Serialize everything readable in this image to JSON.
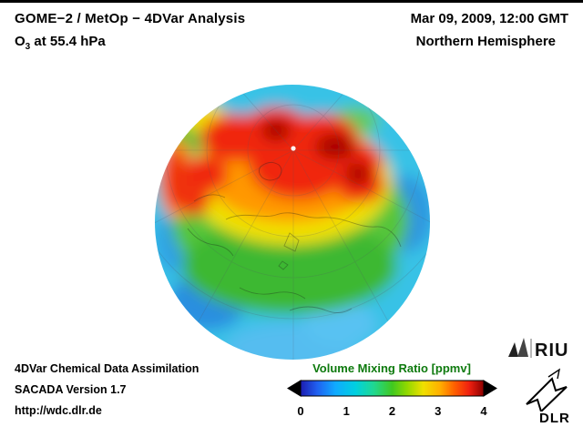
{
  "header": {
    "title": "GOME−2 / MetOp − 4DVar Analysis",
    "subtitle_prefix": "O",
    "subtitle_sub": "3",
    "subtitle_suffix": " at 55.4 hPa",
    "datetime": "Mar 09, 2009, 12:00 GMT",
    "region": "Northern Hemisphere"
  },
  "colorbar": {
    "title": "Volume Mixing Ratio [ppmv]",
    "title_color": "#0e7a0e",
    "ticks": [
      "0",
      "1",
      "2",
      "3",
      "4"
    ],
    "range": [
      0,
      4
    ],
    "gradient": [
      {
        "o": "0%",
        "c": "#1c1cb0"
      },
      {
        "o": "9%",
        "c": "#2060f0"
      },
      {
        "o": "19%",
        "c": "#10aaff"
      },
      {
        "o": "30%",
        "c": "#00d0e0"
      },
      {
        "o": "40%",
        "c": "#20d890"
      },
      {
        "o": "50%",
        "c": "#40c820"
      },
      {
        "o": "58%",
        "c": "#90d800"
      },
      {
        "o": "67%",
        "c": "#f0e000"
      },
      {
        "o": "76%",
        "c": "#ffb000"
      },
      {
        "o": "84%",
        "c": "#ff6000"
      },
      {
        "o": "92%",
        "c": "#f02010"
      },
      {
        "o": "100%",
        "c": "#8c0000"
      }
    ]
  },
  "footer": {
    "line1": "4DVar Chemical Data Assimilation",
    "line2": "SACADA Version 1.7",
    "line3": "http://wdc.dlr.de"
  },
  "logos": {
    "riu": "RIU",
    "dlr": "DLR"
  }
}
